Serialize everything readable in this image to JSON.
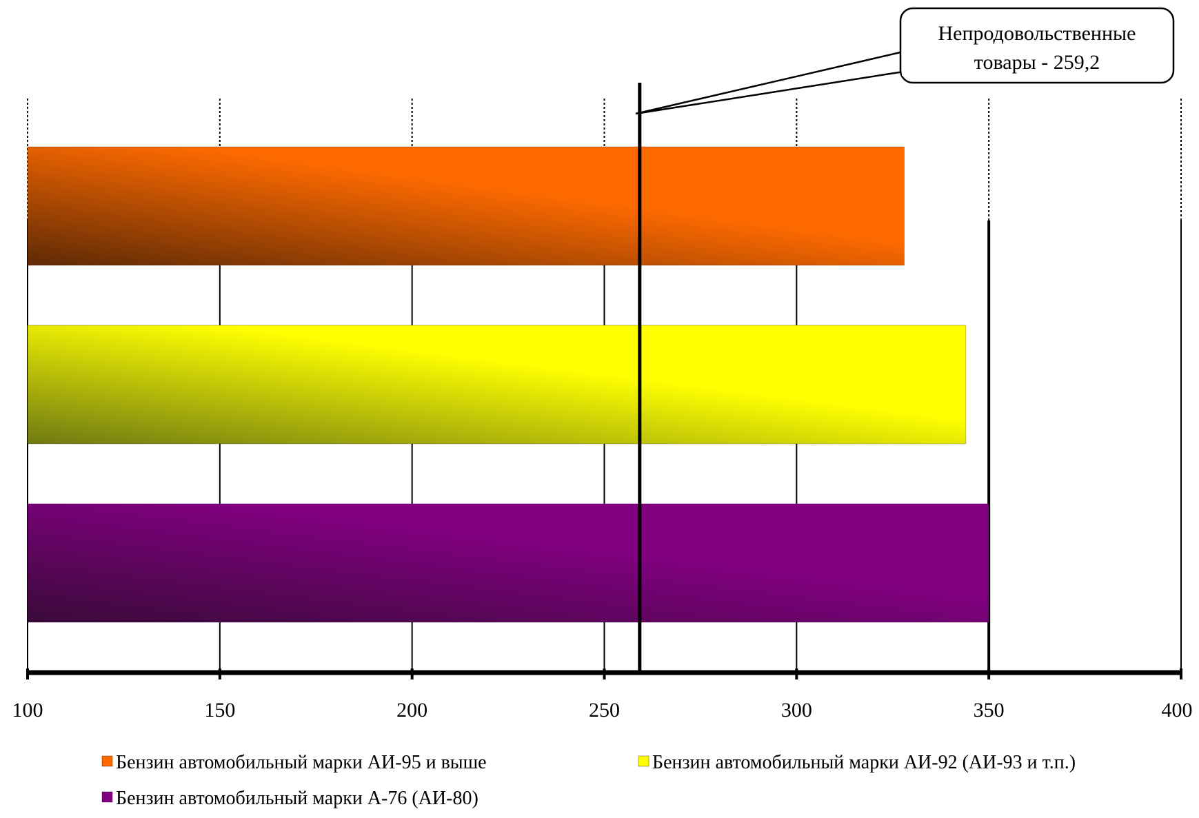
{
  "chart_data": {
    "type": "bar",
    "orientation": "horizontal",
    "title": "",
    "xlabel": "",
    "ylabel": "",
    "xlim": [
      100,
      400
    ],
    "ticks": [
      100,
      150,
      200,
      250,
      300,
      350,
      400
    ],
    "tick_labels": [
      "100",
      "150",
      "200",
      "250",
      "300",
      "350",
      "400"
    ],
    "grid": true,
    "legend_position": "bottom",
    "series": [
      {
        "name": "Бензин автомобильный марки АИ-95 и выше",
        "value": 328,
        "color": "#ff6a00",
        "color_dark": "#5e2a05"
      },
      {
        "name": "Бензин автомобильный марки АИ-92 (АИ-93 и т.п.)",
        "value": 344,
        "color": "#ffff00",
        "color_dark": "#6f7a12"
      },
      {
        "name": "Бензин автомобильный марки А-76 (АИ-80)",
        "value": 350,
        "color": "#80007f",
        "color_dark": "#3a0a3a"
      }
    ],
    "reference_line": {
      "value": 259.2,
      "label_line1": "Непродовольственные",
      "label_line2": "товары - 259,2"
    }
  }
}
